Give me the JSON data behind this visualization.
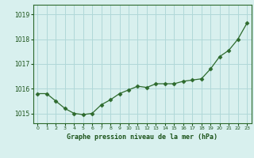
{
  "x": [
    0,
    1,
    2,
    3,
    4,
    5,
    6,
    7,
    8,
    9,
    10,
    11,
    12,
    13,
    14,
    15,
    16,
    17,
    18,
    19,
    20,
    21,
    22,
    23
  ],
  "y": [
    1015.8,
    1015.8,
    1015.5,
    1015.2,
    1015.0,
    1014.95,
    1015.0,
    1015.35,
    1015.55,
    1015.8,
    1015.95,
    1016.1,
    1016.05,
    1016.2,
    1016.2,
    1016.2,
    1016.3,
    1016.35,
    1016.4,
    1016.8,
    1017.3,
    1017.55,
    1018.0,
    1018.65
  ],
  "line_color": "#2d6a2d",
  "marker": "D",
  "marker_size": 2.5,
  "bg_color": "#d8f0ee",
  "grid_color": "#b0d8d8",
  "title": "Graphe pression niveau de la mer (hPa)",
  "title_color": "#1a5218",
  "ylim": [
    1014.6,
    1019.4
  ],
  "yticks": [
    1015,
    1016,
    1017,
    1018,
    1019
  ],
  "xtick_labels": [
    "0",
    "1",
    "2",
    "3",
    "4",
    "5",
    "6",
    "7",
    "8",
    "9",
    "10",
    "11",
    "12",
    "13",
    "14",
    "15",
    "16",
    "17",
    "18",
    "19",
    "20",
    "21",
    "22",
    "23"
  ],
  "tick_color": "#1a5218",
  "spine_color": "#2d6a2d"
}
